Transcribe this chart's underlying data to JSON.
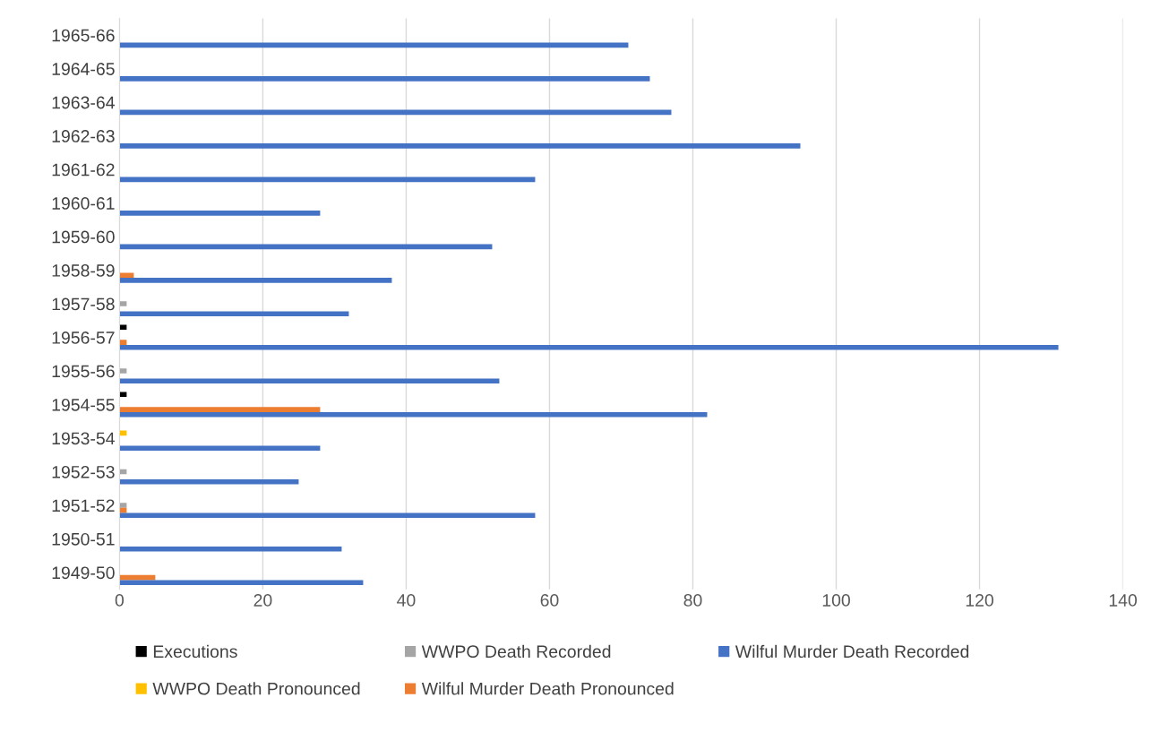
{
  "chart_data": {
    "type": "bar",
    "orientation": "horizontal",
    "categories": [
      "1965-66",
      "1964-65",
      "1963-64",
      "1962-63",
      "1961-62",
      "1960-61",
      "1959-60",
      "1958-59",
      "1957-58",
      "1956-57",
      "1955-56",
      "1954-55",
      "1953-54",
      "1952-53",
      "1951-52",
      "1950-51",
      "1949-50"
    ],
    "series": [
      {
        "name": "Executions",
        "color": "#000000",
        "values": [
          0,
          0,
          0,
          0,
          0,
          0,
          0,
          0,
          0,
          1,
          0,
          1,
          0,
          0,
          0,
          0,
          0
        ]
      },
      {
        "name": "WWPO Death Pronounced",
        "color": "#ffc000",
        "values": [
          0,
          0,
          0,
          0,
          0,
          0,
          0,
          0,
          0,
          0,
          0,
          0,
          1,
          0,
          0,
          0,
          0
        ]
      },
      {
        "name": "WWPO Death Recorded",
        "color": "#a5a5a5",
        "values": [
          0,
          0,
          0,
          0,
          0,
          0,
          0,
          0,
          1,
          0,
          1,
          0,
          0,
          1,
          1,
          0,
          0
        ]
      },
      {
        "name": "Wilful Murder Death Pronounced",
        "color": "#ed7d31",
        "values": [
          0,
          0,
          0,
          0,
          0,
          0,
          0,
          2,
          0,
          1,
          0,
          28,
          0,
          0,
          1,
          0,
          5
        ]
      },
      {
        "name": "Wilful Murder Death Recorded",
        "color": "#4472c4",
        "values": [
          71,
          74,
          77,
          95,
          58,
          28,
          52,
          38,
          32,
          131,
          53,
          82,
          28,
          25,
          58,
          31,
          34
        ]
      }
    ],
    "xlim": [
      0,
      140
    ],
    "xticks": [
      0,
      20,
      40,
      60,
      80,
      100,
      120,
      140
    ],
    "grid": "x",
    "legend": "bottom"
  }
}
